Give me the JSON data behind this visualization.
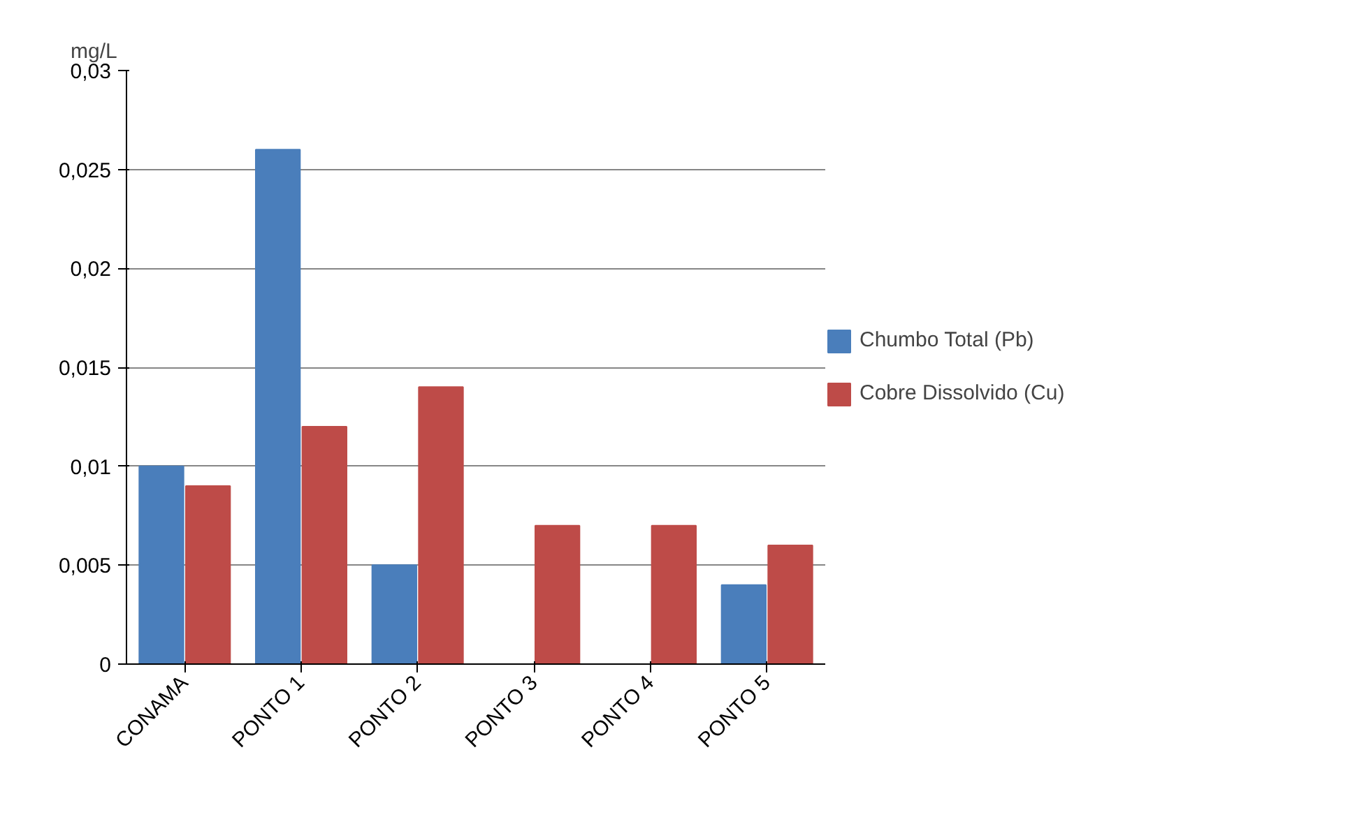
{
  "chart_data": {
    "type": "bar",
    "ylabel": "mg/L",
    "categories": [
      "CONAMA",
      "PONTO 1",
      "PONTO 2",
      "PONTO 3",
      "PONTO 4",
      "PONTO 5"
    ],
    "series": [
      {
        "name": "Chumbo Total (Pb)",
        "color": "#4a7ebb",
        "values": [
          0.01,
          0.026,
          0.005,
          0,
          0,
          0.004
        ]
      },
      {
        "name": "Cobre Dissolvido (Cu)",
        "color": "#be4b48",
        "values": [
          0.009,
          0.012,
          0.014,
          0.007,
          0.007,
          0.006
        ]
      }
    ],
    "ylim": [
      0,
      0.03
    ],
    "yticks": [
      {
        "value": 0,
        "label": "0"
      },
      {
        "value": 0.005,
        "label": "0,005"
      },
      {
        "value": 0.01,
        "label": "0,01"
      },
      {
        "value": 0.015,
        "label": "0,015"
      },
      {
        "value": 0.02,
        "label": "0,02"
      },
      {
        "value": 0.025,
        "label": "0,025"
      },
      {
        "value": 0.03,
        "label": "0,03"
      }
    ],
    "grid": "y",
    "legend": "right"
  }
}
